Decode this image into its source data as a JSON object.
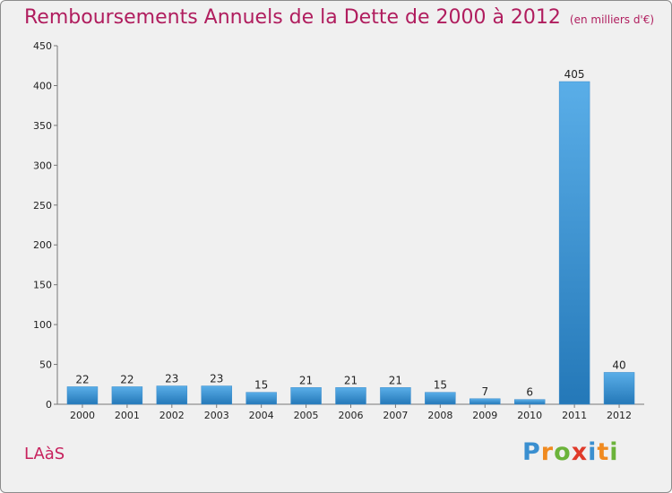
{
  "header": {
    "title": "Remboursements Annuels de la Dette de 2000 à 2012",
    "subtitle": "(en milliers d'€)"
  },
  "footer": {
    "commune": "LAàS",
    "logo_letters": [
      "P",
      "r",
      "o",
      "x",
      "i",
      "t",
      "i"
    ],
    "logo_colors": [
      "#3a8fd0",
      "#f08a20",
      "#6bb33a",
      "#e03a2a",
      "#3a8fd0",
      "#f08a20",
      "#6bb33a"
    ]
  },
  "chart_data": {
    "type": "bar",
    "title": "Remboursements Annuels de la Dette de 2000 à 2012",
    "subtitle": "(en milliers d'€)",
    "categories": [
      "2000",
      "2001",
      "2002",
      "2003",
      "2004",
      "2005",
      "2006",
      "2007",
      "2008",
      "2009",
      "2010",
      "2011",
      "2012"
    ],
    "values": [
      22,
      22,
      23,
      23,
      15,
      21,
      21,
      21,
      15,
      7,
      6,
      405,
      40
    ],
    "ylim": [
      0,
      450
    ],
    "yticks": [
      0,
      50,
      100,
      150,
      200,
      250,
      300,
      350,
      400,
      450
    ],
    "grid": false,
    "bar_color_top": "#5aaee8",
    "bar_color_bottom": "#2478b8",
    "title_color": "#b01d5e"
  }
}
